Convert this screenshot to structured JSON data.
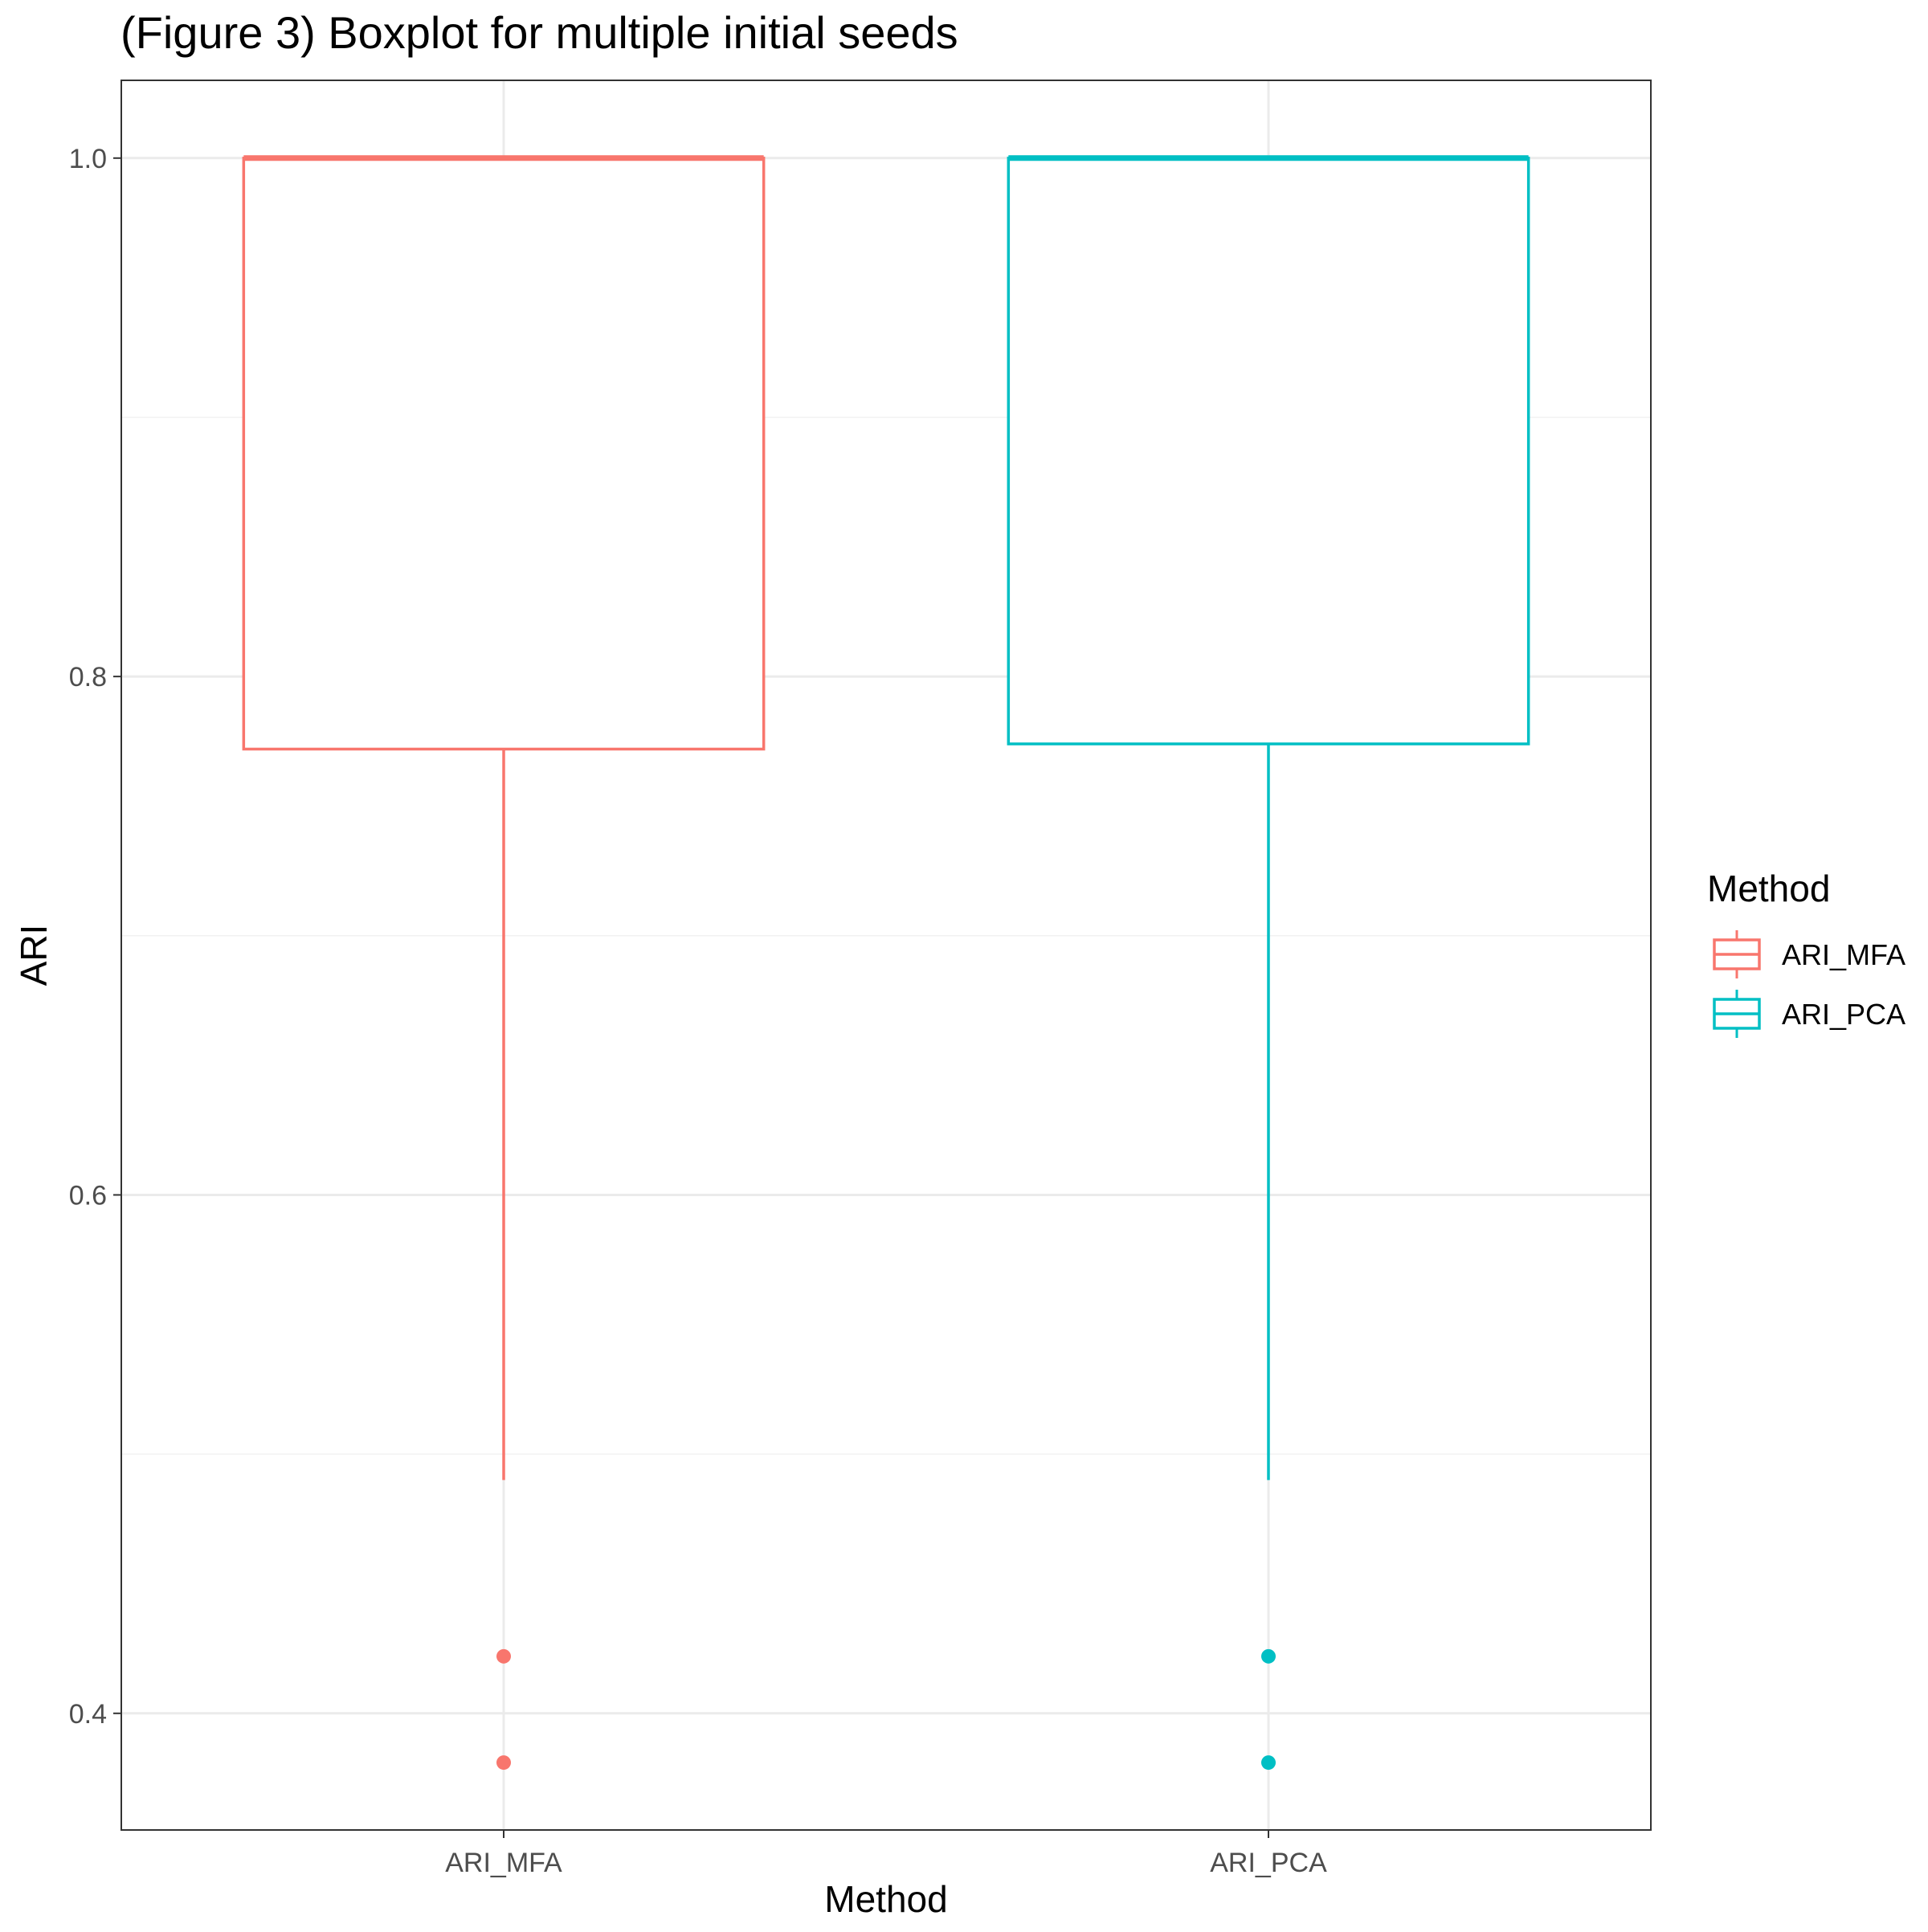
{
  "chart_data": {
    "type": "boxplot",
    "title": "(Figure 3) Boxplot for multiple initial seeds",
    "xlabel": "Method",
    "ylabel": "ARI",
    "categories": [
      "ARI_MFA",
      "ARI_PCA"
    ],
    "ylim": [
      0.355,
      1.03
    ],
    "yticks": [
      0.4,
      0.6,
      0.8,
      1.0
    ],
    "ytick_labels": [
      "0.4",
      "0.6",
      "0.8",
      "1.0"
    ],
    "grid": true,
    "legend": {
      "title": "Method",
      "position": "right",
      "entries": [
        "ARI_MFA",
        "ARI_PCA"
      ]
    },
    "colors": {
      "ARI_MFA": "#F8766D",
      "ARI_PCA": "#00BFC4"
    },
    "boxes": [
      {
        "category": "ARI_MFA",
        "lower_whisker": 0.49,
        "q1": 0.772,
        "median": 1.0,
        "q3": 1.0,
        "upper_whisker": 1.0,
        "outliers": [
          0.422,
          0.381
        ]
      },
      {
        "category": "ARI_PCA",
        "lower_whisker": 0.49,
        "q1": 0.774,
        "median": 1.0,
        "q3": 1.0,
        "upper_whisker": 1.0,
        "outliers": [
          0.422,
          0.381
        ]
      }
    ]
  }
}
